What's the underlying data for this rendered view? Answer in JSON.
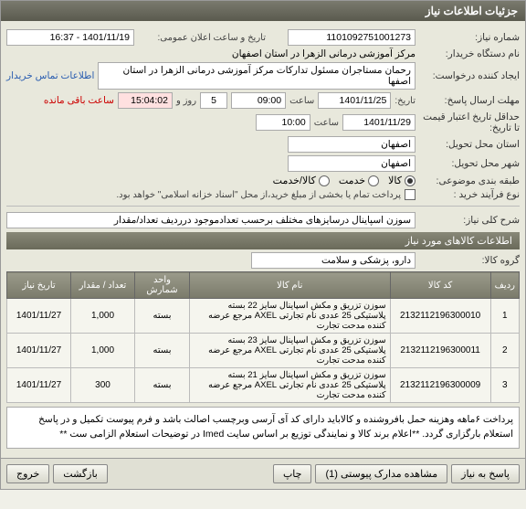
{
  "panel_title": "جزئیات اطلاعات نیاز",
  "fields": {
    "need_no_label": "شماره نیاز:",
    "need_no": "1101092751001273",
    "announce_label": "تاریخ و ساعت اعلان عمومی:",
    "announce_value": "1401/11/19 - 16:37",
    "buyer_name_label": "نام دستگاه خریدار:",
    "buyer_name": "مرکز آموزشی درمانی الزهرا در استان اصفهان",
    "requester_label": "ایجاد کننده درخواست:",
    "requester_value": "رحمان مستاجران مسئول تدارکات مرکز آموزشی درمانی الزهرا در استان اصفها",
    "contact_link": "اطلاعات تماس خریدار",
    "deadline_label": "مهلت ارسال پاسخ:",
    "deadline_date_label": "تاریخ:",
    "deadline_date": "1401/11/25",
    "deadline_time_label": "ساعت",
    "deadline_time": "09:00",
    "days": "5",
    "days_label": "روز و",
    "countdown": "15:04:02",
    "remaining_label": "ساعت باقی مانده",
    "validity_label": "حداقل تاریخ اعتبار قیمت تا تاریخ:",
    "validity_date": "1401/11/29",
    "validity_time_label": "ساعت",
    "validity_time": "10:00",
    "province_label": "استان محل تحویل:",
    "province": "اصفهان",
    "city_label": "شهر محل تحویل:",
    "city": "اصفهان",
    "category_label": "طبقه بندی موضوعی:",
    "radio_goods": "کالا",
    "radio_service": "خدمت",
    "radio_goods_service": "کالا/خدمت",
    "process_label": "نوع فرآیند خرید :",
    "process_note": "پرداخت تمام یا بخشی از مبلغ خرید،از محل \"اسناد خزانه اسلامی\" خواهد بود.",
    "need_desc_label": "شرح کلی نیاز:",
    "need_desc": "سوزن اسپاینال درسایزهای مختلف برحسب تعدادموجود درردیف تعداد/مقدار"
  },
  "goods_section_title": "اطلاعات کالاهای مورد نیاز",
  "group_label": "گروه کالا:",
  "group_value": "دارو، پزشکی و سلامت",
  "table": {
    "headers": [
      "ردیف",
      "کد کالا",
      "نام کالا",
      "واحد شمارش",
      "تعداد / مقدار",
      "تاریخ نیاز"
    ],
    "rows": [
      [
        "1",
        "2132112196300010",
        "سوزن تزریق و مکش اسپاینال سایز 22 بسته پلاستیکی 25 عددی نام تجارتی AXEL مرجع عرضه کننده مدحت تجارت",
        "بسته",
        "1,000",
        "1401/11/27"
      ],
      [
        "2",
        "2132112196300011",
        "سوزن تزریق و مکش اسپاینال سایز 23 بسته پلاستیکی 25 عددی نام تجارتی AXEL مرجع عرضه کننده مدحت تجارت",
        "بسته",
        "1,000",
        "1401/11/27"
      ],
      [
        "3",
        "2132112196300009",
        "سوزن تزریق و مکش اسپاینال سایز 21 بسته پلاستیکی 25 عددی نام تجارتی AXEL مرجع عرضه کننده مدحت تجارت",
        "بسته",
        "300",
        "1401/11/27"
      ]
    ]
  },
  "footer_note": "پرداخت ۶ماهه وهزینه حمل بافروشنده و کالاباید دارای کد آی آرسی وبرچسب اصالت باشد و فرم پیوست تکمیل و در پاسخ استعلام بارگزاری گردد. **اعلام برند کالا و نمایندگی توزیع بر اساس سایت Imed در توضیحات استعلام الزامی ست **",
  "buttons": {
    "respond": "پاسخ به نیاز",
    "attachments": "مشاهده مدارک پیوستی (1)",
    "print": "چاپ",
    "back": "بازگشت",
    "exit": "خروج"
  },
  "colors": {
    "header_bg": "#6a6a5a",
    "link": "#2a5db0",
    "red": "#c00"
  }
}
